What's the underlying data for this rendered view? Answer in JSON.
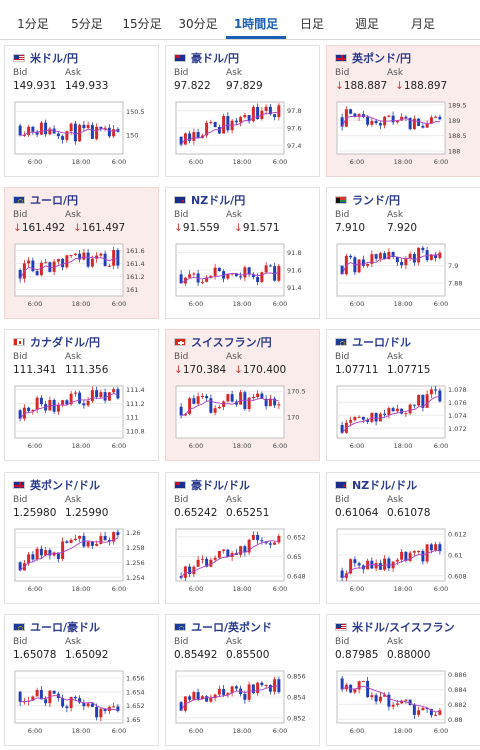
{
  "tabs": [
    {
      "label": "1分足",
      "active": false
    },
    {
      "label": "5分足",
      "active": false
    },
    {
      "label": "15分足",
      "active": false
    },
    {
      "label": "30分足",
      "active": false
    },
    {
      "label": "1時間足",
      "active": true
    },
    {
      "label": "日足",
      "active": false
    },
    {
      "label": "週足",
      "active": false
    },
    {
      "label": "月足",
      "active": false
    }
  ],
  "quote_labels": {
    "bid": "Bid",
    "ask": "Ask"
  },
  "colors": {
    "up": "#d62828",
    "down": "#1f3fb8",
    "ma": "#b040c8",
    "down_arrow": "#d03a3a",
    "active_tab": "#1a5fb4",
    "pair_link": "#2b3a8c"
  },
  "cards": [
    {
      "pair": "米ドル/円",
      "flag": "us",
      "bid": "149.931",
      "ask": "149.933",
      "bid_down": false,
      "ask_down": false,
      "highlight": false,
      "chart": {
        "y_ticks": [
          "150.5",
          "150"
        ],
        "y_range": [
          149.6,
          150.7
        ],
        "x_ticks": [
          "6:00",
          "18:00",
          "6:00"
        ],
        "start": 150.2,
        "end": 149.95,
        "seed": 11
      }
    },
    {
      "pair": "豪ドル/円",
      "flag": "au",
      "bid": "97.822",
      "ask": "97.829",
      "bid_down": false,
      "ask_down": false,
      "highlight": false,
      "chart": {
        "y_ticks": [
          "97.8",
          "97.6",
          "97.4"
        ],
        "y_range": [
          97.3,
          97.9
        ],
        "x_ticks": [
          "6:00",
          "18:00",
          "6:00"
        ],
        "start": 97.5,
        "end": 97.82,
        "seed": 23
      }
    },
    {
      "pair": "英ポンド/円",
      "flag": "gb",
      "bid": "188.887",
      "ask": "188.897",
      "bid_down": true,
      "ask_down": true,
      "highlight": true,
      "chart": {
        "y_ticks": [
          "189.5",
          "189",
          "188.5",
          "188"
        ],
        "y_range": [
          187.9,
          189.6
        ],
        "x_ticks": [
          "6:00",
          "18:00",
          "6:00"
        ],
        "start": 189.1,
        "end": 188.9,
        "seed": 37
      }
    },
    {
      "pair": "ユーロ/円",
      "flag": "eu",
      "bid": "161.492",
      "ask": "161.497",
      "bid_down": true,
      "ask_down": true,
      "highlight": true,
      "chart": {
        "y_ticks": [
          "161.6",
          "161.4",
          "161.2",
          "161"
        ],
        "y_range": [
          160.9,
          161.7
        ],
        "x_ticks": [
          "6:00",
          "18:00",
          "6:00"
        ],
        "start": 161.3,
        "end": 161.5,
        "seed": 41
      }
    },
    {
      "pair": "NZドル/円",
      "flag": "nz",
      "bid": "91.559",
      "ask": "91.571",
      "bid_down": true,
      "ask_down": true,
      "highlight": false,
      "chart": {
        "y_ticks": [
          "91.8",
          "91.6",
          "91.4"
        ],
        "y_range": [
          91.3,
          91.9
        ],
        "x_ticks": [
          "6:00",
          "18:00",
          "6:00"
        ],
        "start": 91.55,
        "end": 91.56,
        "seed": 53
      }
    },
    {
      "pair": "ランド/円",
      "flag": "za",
      "bid": "7.910",
      "ask": "7.920",
      "bid_down": false,
      "ask_down": false,
      "highlight": false,
      "chart": {
        "y_ticks": [
          "7.9",
          "7.88"
        ],
        "y_range": [
          7.865,
          7.925
        ],
        "x_ticks": [
          "6:00",
          "18:00",
          "6:00"
        ],
        "start": 7.9,
        "end": 7.915,
        "seed": 61
      }
    },
    {
      "pair": "カナダドル/円",
      "flag": "ca",
      "bid": "111.341",
      "ask": "111.356",
      "bid_down": false,
      "ask_down": false,
      "highlight": false,
      "chart": {
        "y_ticks": [
          "111.4",
          "111.2",
          "111",
          "110.8"
        ],
        "y_range": [
          110.7,
          111.45
        ],
        "x_ticks": [
          "6:00",
          "18:00",
          "6:00"
        ],
        "start": 111.1,
        "end": 111.34,
        "seed": 71
      }
    },
    {
      "pair": "スイスフラン/円",
      "flag": "ch",
      "bid": "170.384",
      "ask": "170.400",
      "bid_down": true,
      "ask_down": true,
      "highlight": true,
      "chart": {
        "y_ticks": [
          "170.5",
          "170"
        ],
        "y_range": [
          169.6,
          170.6
        ],
        "x_ticks": [
          "6:00",
          "18:00",
          "6:00"
        ],
        "start": 170.2,
        "end": 170.38,
        "seed": 83
      }
    },
    {
      "pair": "ユーロ/ドル",
      "flag": "eu",
      "bid": "1.07711",
      "ask": "1.07715",
      "bid_down": false,
      "ask_down": false,
      "highlight": false,
      "chart": {
        "y_ticks": [
          "1.078",
          "1.076",
          "1.074",
          "1.072"
        ],
        "y_range": [
          1.0705,
          1.0785
        ],
        "x_ticks": [
          "6:00",
          "18:00",
          "6:00"
        ],
        "start": 1.0725,
        "end": 1.0771,
        "seed": 97
      }
    },
    {
      "pair": "英ポンド/ドル",
      "flag": "gb",
      "bid": "1.25980",
      "ask": "1.25990",
      "bid_down": false,
      "ask_down": false,
      "highlight": false,
      "chart": {
        "y_ticks": [
          "1.26",
          "1.258",
          "1.256",
          "1.254"
        ],
        "y_range": [
          1.2535,
          1.2605
        ],
        "x_ticks": [
          "6:00",
          "18:00",
          "6:00"
        ],
        "start": 1.256,
        "end": 1.2598,
        "seed": 101
      }
    },
    {
      "pair": "豪ドル/ドル",
      "flag": "au",
      "bid": "0.65242",
      "ask": "0.65251",
      "bid_down": false,
      "ask_down": false,
      "highlight": false,
      "chart": {
        "y_ticks": [
          "0.652",
          "0.65",
          "0.648"
        ],
        "y_range": [
          0.6475,
          0.6528
        ],
        "x_ticks": [
          "6:00",
          "18:00",
          "6:00"
        ],
        "start": 0.648,
        "end": 0.6524,
        "seed": 113
      }
    },
    {
      "pair": "NZドル/ドル",
      "flag": "nz",
      "bid": "0.61064",
      "ask": "0.61078",
      "bid_down": false,
      "ask_down": false,
      "highlight": false,
      "chart": {
        "y_ticks": [
          "0.612",
          "0.61",
          "0.608"
        ],
        "y_range": [
          0.6075,
          0.6125
        ],
        "x_ticks": [
          "6:00",
          "18:00",
          "6:00"
        ],
        "start": 0.6085,
        "end": 0.6106,
        "seed": 127
      }
    },
    {
      "pair": "ユーロ/豪ドル",
      "flag": "eu",
      "bid": "1.65078",
      "ask": "1.65092",
      "bid_down": false,
      "ask_down": false,
      "highlight": false,
      "chart": {
        "y_ticks": [
          "1.656",
          "1.654",
          "1.652",
          "1.65"
        ],
        "y_range": [
          1.6495,
          1.657
        ],
        "x_ticks": [
          "6:00",
          "18:00",
          "6:00"
        ],
        "start": 1.654,
        "end": 1.6508,
        "seed": 131
      }
    },
    {
      "pair": "ユーロ/英ポンド",
      "flag": "eu",
      "bid": "0.85492",
      "ask": "0.85500",
      "bid_down": false,
      "ask_down": false,
      "highlight": false,
      "chart": {
        "y_ticks": [
          "0.856",
          "0.854",
          "0.852"
        ],
        "y_range": [
          0.8515,
          0.8565
        ],
        "x_ticks": [
          "6:00",
          "18:00",
          "6:00"
        ],
        "start": 0.8535,
        "end": 0.8549,
        "seed": 139
      }
    },
    {
      "pair": "米ドル/スイスフラン",
      "flag": "us",
      "bid": "0.87985",
      "ask": "0.88000",
      "bid_down": false,
      "ask_down": false,
      "highlight": false,
      "chart": {
        "y_ticks": [
          "0.886",
          "0.884",
          "0.882",
          "0.88"
        ],
        "y_range": [
          0.8795,
          0.8865
        ],
        "x_ticks": [
          "6:00",
          "18:00",
          "6:00"
        ],
        "start": 0.8855,
        "end": 0.88,
        "seed": 149
      }
    }
  ]
}
